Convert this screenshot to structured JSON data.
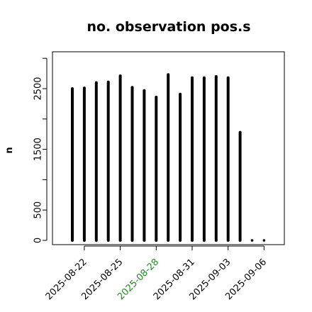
{
  "chart_data": {
    "type": "bar",
    "title": "no. observation pos.s",
    "xlabel": "",
    "ylabel": "n",
    "ylim": [
      0,
      3000
    ],
    "yticks": [
      0,
      500,
      1500,
      2500
    ],
    "grid": false,
    "legend": "none",
    "bar_color": "#000000",
    "x": [
      "2025-08-21",
      "2025-08-22",
      "2025-08-23",
      "2025-08-24",
      "2025-08-25",
      "2025-08-26",
      "2025-08-27",
      "2025-08-28",
      "2025-08-29",
      "2025-08-30",
      "2025-08-31",
      "2025-09-01",
      "2025-09-02",
      "2025-09-03",
      "2025-09-04",
      "2025-09-05",
      "2025-09-06"
    ],
    "values": [
      2500,
      2510,
      2600,
      2610,
      2710,
      2520,
      2470,
      2360,
      2730,
      2410,
      2680,
      2680,
      2700,
      2680,
      1780,
      0,
      0
    ],
    "xtick_labels": [
      "2025-08-22",
      "2025-08-25",
      "2025-08-28",
      "2025-08-31",
      "2025-09-03",
      "2025-09-06"
    ],
    "highlight_tick": {
      "label": "2025-08-28",
      "color": "#228B22"
    }
  }
}
